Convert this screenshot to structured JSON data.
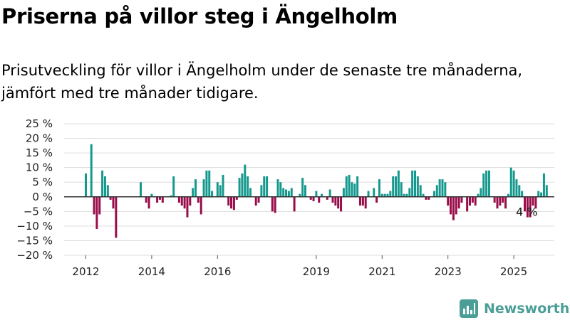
{
  "header": {
    "title": "Priserna på villor steg i Ängelholm",
    "subtitle": "Prisutveckling för villor i Ängelholm under de senaste tre månaderna, jämfört med tre månader tidigare."
  },
  "brand": {
    "name": "Newsworthy",
    "logo_icon": "newsworthy-logo-icon",
    "color": "#4a9e97"
  },
  "chart_data": {
    "type": "bar",
    "ylim": [
      -20,
      25
    ],
    "yticks": [
      25,
      20,
      15,
      10,
      5,
      0,
      -5,
      -10,
      -15,
      -20
    ],
    "ytick_labels": [
      "25 %",
      "20 %",
      "15 %",
      "10 %",
      "5 %",
      "0 %",
      "−5 %",
      "−10 %",
      "−15 %",
      "−20 %"
    ],
    "xticks": [
      {
        "label": "2012",
        "year": 2012
      },
      {
        "label": "2014",
        "year": 2014
      },
      {
        "label": "2016",
        "year": 2016
      },
      {
        "label": "2019",
        "year": 2019
      },
      {
        "label": "2021",
        "year": 2021
      },
      {
        "label": "2023",
        "year": 2023
      },
      {
        "label": "2025",
        "year": 2025
      }
    ],
    "grid": true,
    "colors": {
      "positive": "#15998e",
      "negative": "#990d4b",
      "zero_line": "#333333",
      "grid": "#dddddd"
    },
    "annotation": {
      "text": "4 %",
      "index": 161
    },
    "series": [
      {
        "start": "2012-01",
        "values": [
          8,
          0,
          18,
          -6,
          -11,
          -6,
          9,
          7,
          4,
          -1,
          -4,
          -14,
          0,
          0,
          0,
          0,
          0,
          0,
          0,
          0,
          5,
          0,
          -2,
          -4,
          1,
          0,
          -2,
          -1,
          -2,
          0,
          0,
          0.5,
          7,
          0,
          -2,
          -3,
          -4,
          -7,
          -3,
          3,
          6,
          -2,
          -6,
          6,
          9,
          9,
          2,
          0,
          5,
          4,
          7.5,
          0,
          -3,
          -4,
          -4.5,
          -1,
          6.5,
          8,
          11,
          7,
          3,
          0,
          -3,
          -2,
          4,
          7,
          7,
          0,
          -5,
          -5.5,
          6,
          5,
          3,
          2.5,
          2,
          3,
          -5,
          0,
          1,
          6.5,
          4,
          0,
          -1,
          -1.5,
          2,
          -2,
          1,
          0,
          -1,
          2.5,
          -2,
          -3,
          -4,
          -5,
          3,
          7,
          7.5,
          5,
          4.5,
          7,
          -3,
          -3,
          -4,
          2,
          0,
          3,
          -2,
          6,
          1,
          1,
          1,
          2,
          7,
          7,
          9,
          5,
          1,
          1,
          3,
          9,
          9,
          7,
          4,
          1,
          -1,
          -1,
          0,
          2,
          4,
          6,
          6,
          5,
          -3,
          -6,
          -8,
          -6,
          -4,
          -2,
          0,
          -5,
          -3,
          -2,
          -3,
          1,
          3,
          8,
          9,
          9,
          0,
          -2,
          -4,
          -3,
          -2,
          -4,
          1,
          10,
          9,
          6,
          4,
          2,
          -5,
          -7,
          -7,
          -3,
          -4,
          2,
          1.5,
          8,
          4
        ]
      }
    ]
  }
}
